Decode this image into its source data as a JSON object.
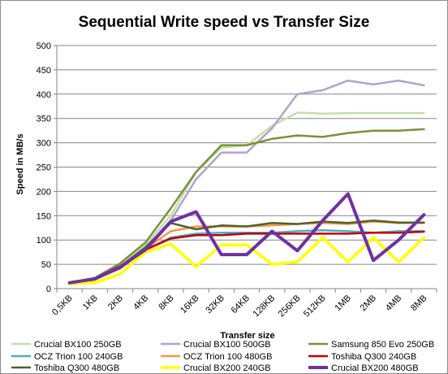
{
  "chart_data": {
    "type": "line",
    "title": "Sequential Write speed vs Transfer Size",
    "xlabel": "Transfer size",
    "ylabel": "Speed in MB/s",
    "ylim": [
      0,
      500
    ],
    "yticks": [
      0,
      50,
      100,
      150,
      200,
      250,
      300,
      350,
      400,
      450,
      500
    ],
    "grid": true,
    "legend_position": "bottom",
    "categories": [
      "0,5KB",
      "1KB",
      "2KB",
      "4KB",
      "8KB",
      "16KB",
      "32KB",
      "64KB",
      "128KB",
      "256KB",
      "512KB",
      "1MB",
      "2MB",
      "4MB",
      "8MB"
    ],
    "series": [
      {
        "name": "Crucial BX100 250GB",
        "color": "#c3e0a8",
        "values": [
          10,
          20,
          50,
          90,
          150,
          240,
          290,
          295,
          335,
          362,
          360,
          361,
          361,
          361,
          361
        ]
      },
      {
        "name": "Crucial BX100 500GB",
        "color": "#b3a2c7",
        "values": [
          10,
          20,
          45,
          85,
          140,
          225,
          280,
          280,
          330,
          400,
          408,
          428,
          420,
          428,
          418
        ]
      },
      {
        "name": "Samsung 850 Evo 250GB",
        "color": "#77933c",
        "values": [
          12,
          22,
          52,
          95,
          165,
          240,
          295,
          295,
          308,
          315,
          312,
          320,
          325,
          325,
          328
        ]
      },
      {
        "name": "OCZ Trion 100 240GB",
        "color": "#4bacc6",
        "values": [
          10,
          18,
          42,
          80,
          105,
          113,
          115,
          115,
          115,
          118,
          120,
          118,
          115,
          118,
          118
        ]
      },
      {
        "name": "OCZ Trion 100 480GB",
        "color": "#f79646",
        "values": [
          10,
          18,
          42,
          82,
          118,
          128,
          128,
          128,
          130,
          133,
          135,
          133,
          138,
          135,
          135
        ]
      },
      {
        "name": "Toshiba Q300 240GB",
        "color": "#c00000",
        "values": [
          10,
          20,
          42,
          80,
          103,
          110,
          110,
          113,
          113,
          113,
          113,
          113,
          115,
          115,
          117
        ]
      },
      {
        "name": "Toshiba Q300 480GB",
        "color": "#4f6228",
        "values": [
          10,
          20,
          45,
          85,
          135,
          122,
          130,
          128,
          135,
          133,
          138,
          135,
          140,
          136,
          136
        ]
      },
      {
        "name": "Crucial BX200 240GB",
        "color": "#ffff00",
        "values": [
          10,
          12,
          30,
          75,
          92,
          45,
          90,
          90,
          50,
          55,
          105,
          55,
          105,
          55,
          105
        ]
      },
      {
        "name": "Crucial BX200 480GB",
        "color": "#7030a0",
        "values": [
          12,
          20,
          45,
          80,
          138,
          158,
          70,
          70,
          118,
          78,
          140,
          195,
          58,
          100,
          152
        ]
      }
    ]
  }
}
